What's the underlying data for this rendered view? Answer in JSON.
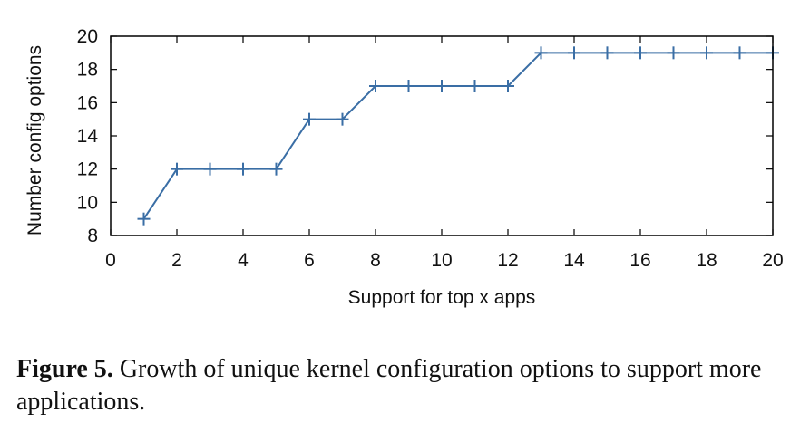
{
  "chart_data": {
    "type": "line",
    "xlabel": "Support for top x apps",
    "ylabel": "Number config options",
    "xlim": [
      0,
      20
    ],
    "ylim": [
      8,
      20
    ],
    "xticks": [
      0,
      2,
      4,
      6,
      8,
      10,
      12,
      14,
      16,
      18,
      20
    ],
    "yticks": [
      8,
      10,
      12,
      14,
      16,
      18,
      20
    ],
    "grid": false,
    "series": [
      {
        "color": "#3a6ea5",
        "marker": "plus",
        "x": [
          1,
          2,
          3,
          4,
          5,
          6,
          7,
          8,
          9,
          10,
          11,
          12,
          13,
          14,
          15,
          16,
          17,
          18,
          19,
          20
        ],
        "y": [
          9,
          12,
          12,
          12,
          12,
          15,
          15,
          17,
          17,
          17,
          17,
          17,
          19,
          19,
          19,
          19,
          19,
          19,
          19,
          19
        ]
      }
    ]
  },
  "caption": {
    "label": "Figure 5.",
    "text": "Growth of unique kernel configuration options to support more applications."
  }
}
